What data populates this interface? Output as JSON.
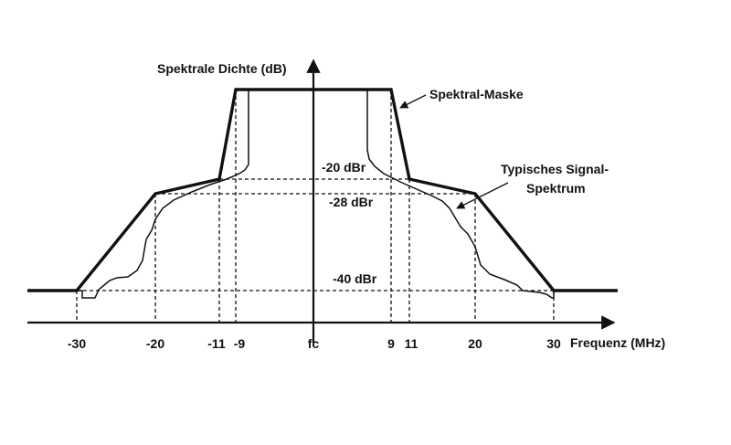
{
  "y_axis_label": "Spektrale Dichte (dB)",
  "x_axis_label": "Frequenz (MHz)",
  "level_labels": [
    "-20 dBr",
    "-28 dBr",
    "-40 dBr"
  ],
  "x_ticks": [
    "-30",
    "-20",
    "-11",
    "-9",
    "fc",
    "9",
    "11",
    "20",
    "30"
  ],
  "annotations": {
    "mask": "Spektral-Maske",
    "signal_line1": "Typisches Signal-",
    "signal_line2": "Spektrum"
  }
}
